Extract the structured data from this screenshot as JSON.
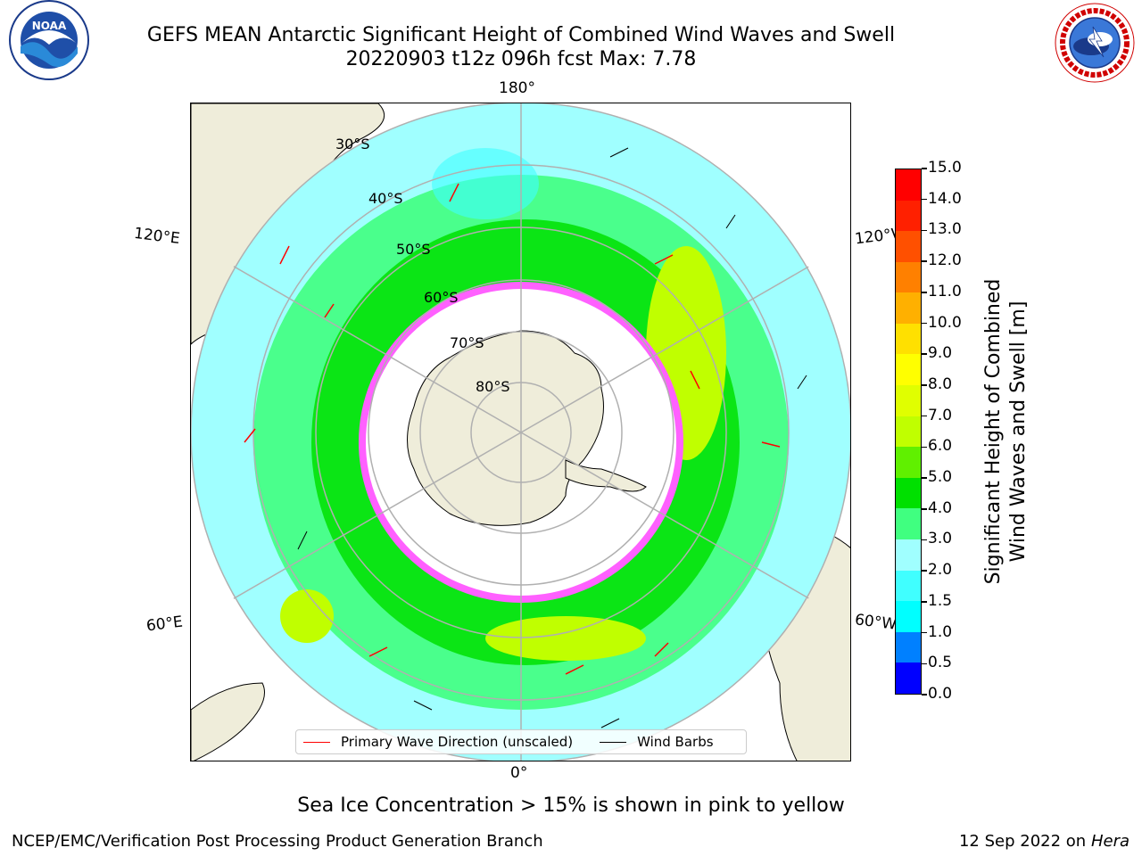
{
  "header": {
    "title_line1": "GEFS MEAN Antarctic Significant Height of Combined Wind Waves and Swell",
    "title_line2": "20220903 t12z 096h fcst   Max: 7.78"
  },
  "logos": {
    "left": "noaa-logo",
    "right": "national-weather-service-logo"
  },
  "map": {
    "projection": "south-polar-stereographic",
    "longitude_labels": [
      "180°",
      "120°E",
      "120°W",
      "60°E",
      "60°W",
      "0°"
    ],
    "latitude_labels": [
      "30°S",
      "40°S",
      "50°S",
      "60°S",
      "70°S",
      "80°S"
    ],
    "colors": {
      "land": "#efedda",
      "ice": "#ffffff",
      "grid": "#b0b0b0",
      "coast": "#000000"
    }
  },
  "legend": {
    "wave_label": "Primary Wave Direction (unscaled)",
    "wave_color": "#ff0000",
    "barb_label": "Wind Barbs",
    "barb_color": "#000000"
  },
  "colorbar": {
    "label_line1": "Significant Height of Combined",
    "label_line2": "Wind Waves and Swell [m]",
    "ticks": [
      "0.0",
      "0.5",
      "1.0",
      "1.5",
      "2.0",
      "3.0",
      "4.0",
      "5.0",
      "6.0",
      "7.0",
      "8.0",
      "9.0",
      "10.0",
      "11.0",
      "12.0",
      "13.0",
      "14.0",
      "15.0"
    ],
    "colors": [
      "#0000ff",
      "#0080ff",
      "#00ffff",
      "#40ffff",
      "#a0ffff",
      "#40ff80",
      "#00e000",
      "#60f000",
      "#c0ff00",
      "#e0ff00",
      "#ffff00",
      "#ffe000",
      "#ffb000",
      "#ff8000",
      "#ff5000",
      "#ff2000",
      "#ff0000"
    ]
  },
  "footer": {
    "ice_note": "Sea Ice Concentration > 15% is shown in pink to yellow",
    "left": "NCEP/EMC/Verification Post Processing Product Generation Branch",
    "date": "12 Sep 2022 on",
    "system": "Hera"
  }
}
